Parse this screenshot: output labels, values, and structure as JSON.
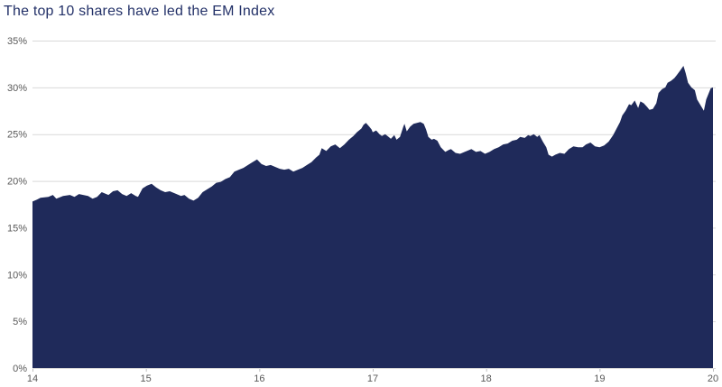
{
  "chart_data": {
    "type": "area",
    "title": "The top 10 shares have led the EM Index",
    "xlabel": "",
    "ylabel": "",
    "xlim": [
      14,
      20
    ],
    "ylim": [
      0,
      35
    ],
    "x_ticks": [
      "14",
      "15",
      "16",
      "17",
      "18",
      "19",
      "20"
    ],
    "y_ticks": [
      "0%",
      "5%",
      "10%",
      "15%",
      "20%",
      "25%",
      "30%",
      "35%"
    ],
    "grid": "horizontal",
    "legend": "none",
    "colors": {
      "area_fill": "#1f2a5a",
      "title_text": "#233168",
      "axis_text": "#595959",
      "gridline": "#d9d9d9",
      "tick_mark": "#c0c0c0"
    },
    "points": [
      [
        14.0,
        17.8
      ],
      [
        14.04,
        18.0
      ],
      [
        14.07,
        18.2
      ],
      [
        14.14,
        18.3
      ],
      [
        14.18,
        18.5
      ],
      [
        14.21,
        18.1
      ],
      [
        14.27,
        18.4
      ],
      [
        14.33,
        18.5
      ],
      [
        14.37,
        18.3
      ],
      [
        14.41,
        18.6
      ],
      [
        14.49,
        18.4
      ],
      [
        14.53,
        18.1
      ],
      [
        14.57,
        18.3
      ],
      [
        14.61,
        18.8
      ],
      [
        14.67,
        18.5
      ],
      [
        14.71,
        18.9
      ],
      [
        14.75,
        19.0
      ],
      [
        14.79,
        18.6
      ],
      [
        14.83,
        18.4
      ],
      [
        14.87,
        18.7
      ],
      [
        14.91,
        18.4
      ],
      [
        14.93,
        18.3
      ],
      [
        14.97,
        19.2
      ],
      [
        15.01,
        19.5
      ],
      [
        15.05,
        19.7
      ],
      [
        15.09,
        19.3
      ],
      [
        15.13,
        19.0
      ],
      [
        15.17,
        18.8
      ],
      [
        15.21,
        18.9
      ],
      [
        15.27,
        18.6
      ],
      [
        15.31,
        18.4
      ],
      [
        15.34,
        18.5
      ],
      [
        15.38,
        18.1
      ],
      [
        15.42,
        17.9
      ],
      [
        15.46,
        18.2
      ],
      [
        15.5,
        18.8
      ],
      [
        15.54,
        19.1
      ],
      [
        15.58,
        19.4
      ],
      [
        15.62,
        19.8
      ],
      [
        15.66,
        19.9
      ],
      [
        15.7,
        20.2
      ],
      [
        15.74,
        20.4
      ],
      [
        15.78,
        21.0
      ],
      [
        15.82,
        21.2
      ],
      [
        15.86,
        21.4
      ],
      [
        15.9,
        21.7
      ],
      [
        15.94,
        22.0
      ],
      [
        15.98,
        22.3
      ],
      [
        16.02,
        21.8
      ],
      [
        16.06,
        21.6
      ],
      [
        16.1,
        21.7
      ],
      [
        16.14,
        21.5
      ],
      [
        16.18,
        21.3
      ],
      [
        16.22,
        21.2
      ],
      [
        16.26,
        21.3
      ],
      [
        16.3,
        21.0
      ],
      [
        16.34,
        21.2
      ],
      [
        16.38,
        21.4
      ],
      [
        16.42,
        21.7
      ],
      [
        16.46,
        22.0
      ],
      [
        16.5,
        22.5
      ],
      [
        16.53,
        22.8
      ],
      [
        16.55,
        23.5
      ],
      [
        16.59,
        23.2
      ],
      [
        16.63,
        23.7
      ],
      [
        16.67,
        23.9
      ],
      [
        16.71,
        23.5
      ],
      [
        16.75,
        23.9
      ],
      [
        16.79,
        24.4
      ],
      [
        16.83,
        24.8
      ],
      [
        16.86,
        25.2
      ],
      [
        16.9,
        25.6
      ],
      [
        16.92,
        26.0
      ],
      [
        16.94,
        26.2
      ],
      [
        16.97,
        25.8
      ],
      [
        16.99,
        25.5
      ],
      [
        17.0,
        25.2
      ],
      [
        17.03,
        25.4
      ],
      [
        17.06,
        25.0
      ],
      [
        17.08,
        24.8
      ],
      [
        17.11,
        25.0
      ],
      [
        17.14,
        24.7
      ],
      [
        17.16,
        24.5
      ],
      [
        17.19,
        24.9
      ],
      [
        17.21,
        24.4
      ],
      [
        17.24,
        24.7
      ],
      [
        17.27,
        25.8
      ],
      [
        17.28,
        26.1
      ],
      [
        17.3,
        25.3
      ],
      [
        17.33,
        25.8
      ],
      [
        17.36,
        26.1
      ],
      [
        17.39,
        26.2
      ],
      [
        17.42,
        26.3
      ],
      [
        17.45,
        26.1
      ],
      [
        17.47,
        25.5
      ],
      [
        17.49,
        24.7
      ],
      [
        17.52,
        24.4
      ],
      [
        17.54,
        24.5
      ],
      [
        17.57,
        24.3
      ],
      [
        17.6,
        23.6
      ],
      [
        17.64,
        23.1
      ],
      [
        17.67,
        23.3
      ],
      [
        17.69,
        23.4
      ],
      [
        17.73,
        23.0
      ],
      [
        17.77,
        22.9
      ],
      [
        17.81,
        23.1
      ],
      [
        17.83,
        23.2
      ],
      [
        17.87,
        23.4
      ],
      [
        17.91,
        23.1
      ],
      [
        17.95,
        23.2
      ],
      [
        17.99,
        22.9
      ],
      [
        18.03,
        23.1
      ],
      [
        18.07,
        23.4
      ],
      [
        18.11,
        23.6
      ],
      [
        18.15,
        23.9
      ],
      [
        18.19,
        24.0
      ],
      [
        18.23,
        24.3
      ],
      [
        18.27,
        24.4
      ],
      [
        18.3,
        24.7
      ],
      [
        18.34,
        24.6
      ],
      [
        18.37,
        24.9
      ],
      [
        18.39,
        24.8
      ],
      [
        18.42,
        25.0
      ],
      [
        18.45,
        24.7
      ],
      [
        18.47,
        24.9
      ],
      [
        18.5,
        24.2
      ],
      [
        18.53,
        23.6
      ],
      [
        18.55,
        22.8
      ],
      [
        18.58,
        22.6
      ],
      [
        18.61,
        22.8
      ],
      [
        18.65,
        23.0
      ],
      [
        18.69,
        22.9
      ],
      [
        18.73,
        23.4
      ],
      [
        18.77,
        23.7
      ],
      [
        18.81,
        23.6
      ],
      [
        18.85,
        23.6
      ],
      [
        18.88,
        23.9
      ],
      [
        18.92,
        24.1
      ],
      [
        18.96,
        23.7
      ],
      [
        19.0,
        23.6
      ],
      [
        19.04,
        23.8
      ],
      [
        19.08,
        24.2
      ],
      [
        19.12,
        24.9
      ],
      [
        19.15,
        25.6
      ],
      [
        19.18,
        26.3
      ],
      [
        19.2,
        27.0
      ],
      [
        19.23,
        27.5
      ],
      [
        19.26,
        28.2
      ],
      [
        19.28,
        28.1
      ],
      [
        19.31,
        28.6
      ],
      [
        19.34,
        27.8
      ],
      [
        19.36,
        28.5
      ],
      [
        19.39,
        28.3
      ],
      [
        19.42,
        27.9
      ],
      [
        19.44,
        27.6
      ],
      [
        19.47,
        27.7
      ],
      [
        19.5,
        28.3
      ],
      [
        19.52,
        29.4
      ],
      [
        19.55,
        29.8
      ],
      [
        19.58,
        30.0
      ],
      [
        19.6,
        30.5
      ],
      [
        19.63,
        30.7
      ],
      [
        19.66,
        31.0
      ],
      [
        19.68,
        31.3
      ],
      [
        19.71,
        31.8
      ],
      [
        19.74,
        32.3
      ],
      [
        19.76,
        31.5
      ],
      [
        19.78,
        30.5
      ],
      [
        19.81,
        30.0
      ],
      [
        19.84,
        29.7
      ],
      [
        19.86,
        28.7
      ],
      [
        19.9,
        27.9
      ],
      [
        19.92,
        27.5
      ],
      [
        19.94,
        28.7
      ],
      [
        19.98,
        29.9
      ],
      [
        20.0,
        30.0
      ]
    ]
  }
}
